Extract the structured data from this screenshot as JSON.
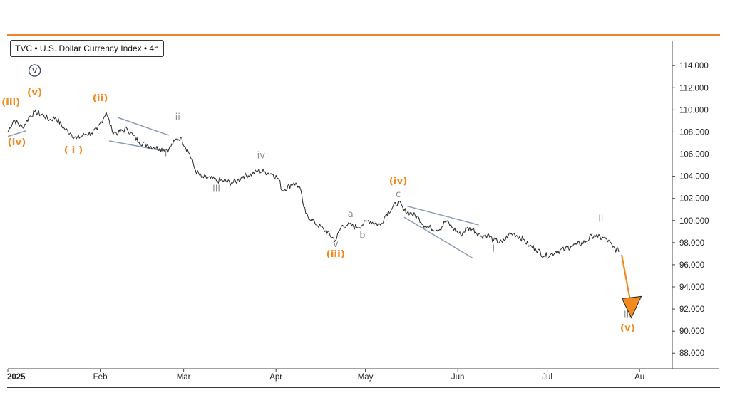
{
  "symbol_label": "TVC • U.S. Dollar Currency Index • 4h",
  "colors": {
    "price": "#2a2a2a",
    "orange": "#f28a1e",
    "gray": "#8c8c8c",
    "navy": "#3a4670",
    "channel": "#8a9bb8",
    "top_border": "#e8862a"
  },
  "chart_data": {
    "type": "line",
    "title": "TVC • U.S. Dollar Currency Index • 4h",
    "ylim": [
      86.6,
      116.2
    ],
    "y_ticks": [
      "88.000",
      "90.000",
      "92.000",
      "94.000",
      "96.000",
      "98.000",
      "100.000",
      "102.000",
      "104.000",
      "106.000",
      "108.000",
      "110.000",
      "112.000",
      "114.000"
    ],
    "x_ticks": [
      "2025",
      "Feb",
      "Mar",
      "Apr",
      "May",
      "Jun",
      "Jul",
      "Au"
    ],
    "series": [
      {
        "x": [
          "2025-01-01",
          "2025-01-03",
          "2025-01-06",
          "2025-01-08",
          "2025-01-10",
          "2025-01-13",
          "2025-01-15",
          "2025-01-17",
          "2025-01-20",
          "2025-01-22",
          "2025-01-24",
          "2025-01-27",
          "2025-01-29",
          "2025-01-31",
          "2025-02-03",
          "2025-02-05",
          "2025-02-07",
          "2025-02-10",
          "2025-02-12",
          "2025-02-14",
          "2025-02-17",
          "2025-02-19",
          "2025-02-21",
          "2025-02-24",
          "2025-02-26",
          "2025-02-28",
          "2025-03-03",
          "2025-03-05",
          "2025-03-07",
          "2025-03-10",
          "2025-03-12",
          "2025-03-14",
          "2025-03-17",
          "2025-03-19",
          "2025-03-21",
          "2025-03-24",
          "2025-03-26",
          "2025-03-28",
          "2025-03-31",
          "2025-04-02",
          "2025-04-03",
          "2025-04-07",
          "2025-04-09",
          "2025-04-10",
          "2025-04-11",
          "2025-04-14",
          "2025-04-17",
          "2025-04-21",
          "2025-04-23",
          "2025-04-25",
          "2025-04-28",
          "2025-04-30",
          "2025-05-02",
          "2025-05-06",
          "2025-05-08",
          "2025-05-12",
          "2025-05-14",
          "2025-05-16",
          "2025-05-19",
          "2025-05-21",
          "2025-05-23",
          "2025-05-26",
          "2025-05-28",
          "2025-05-30",
          "2025-06-02",
          "2025-06-04",
          "2025-06-06",
          "2025-06-09",
          "2025-06-11",
          "2025-06-13",
          "2025-06-16",
          "2025-06-18",
          "2025-06-20",
          "2025-06-23",
          "2025-06-25",
          "2025-06-27",
          "2025-06-30",
          "2025-07-02",
          "2025-07-04",
          "2025-07-07",
          "2025-07-09",
          "2025-07-11",
          "2025-07-14",
          "2025-07-16",
          "2025-07-17",
          "2025-07-18",
          "2025-07-21",
          "2025-07-23",
          "2025-07-25"
        ],
        "values": [
          108.0,
          109.1,
          108.4,
          109.3,
          109.8,
          109.5,
          109.1,
          109.3,
          108.3,
          107.9,
          107.4,
          107.8,
          107.9,
          108.2,
          109.8,
          108.1,
          107.9,
          108.3,
          107.7,
          107.1,
          106.8,
          106.6,
          106.5,
          106.4,
          107.2,
          107.5,
          106.0,
          104.5,
          103.9,
          103.8,
          103.6,
          103.6,
          103.4,
          103.6,
          104.0,
          104.2,
          104.5,
          104.4,
          104.2,
          103.7,
          102.7,
          103.4,
          103.0,
          101.6,
          100.6,
          99.8,
          99.2,
          98.2,
          99.5,
          99.6,
          99.4,
          99.6,
          100.0,
          99.6,
          100.6,
          101.7,
          100.9,
          100.7,
          100.2,
          99.5,
          99.3,
          99.2,
          100.0,
          99.4,
          98.7,
          99.3,
          99.2,
          98.6,
          98.7,
          98.2,
          98.0,
          98.7,
          98.8,
          98.3,
          97.7,
          97.5,
          96.8,
          96.9,
          97.2,
          97.4,
          97.7,
          97.8,
          98.1,
          98.6,
          98.7,
          98.5,
          98.3,
          97.6,
          97.2
        ]
      }
    ],
    "wave_labels": [
      {
        "text": "(iii)",
        "color": "orange",
        "date": "2025-01-02",
        "value": 110.4
      },
      {
        "text": "(iv)",
        "color": "orange",
        "date": "2025-01-04",
        "value": 106.8
      },
      {
        "text": "(v)",
        "color": "orange",
        "date": "2025-01-10",
        "value": 111.3
      },
      {
        "text": "v",
        "color": "navy",
        "date": "2025-01-10",
        "value": 113.3,
        "circled": true
      },
      {
        "text": "( i )",
        "color": "orange",
        "date": "2025-01-23",
        "value": 106.1
      },
      {
        "text": "(ii)",
        "color": "orange",
        "date": "2025-02-01",
        "value": 110.8
      },
      {
        "text": "i",
        "color": "gray",
        "date": "2025-02-23",
        "value": 105.8
      },
      {
        "text": "ii",
        "color": "gray",
        "date": "2025-02-27",
        "value": 109.1
      },
      {
        "text": "iii",
        "color": "gray",
        "date": "2025-03-12",
        "value": 102.6
      },
      {
        "text": "iv",
        "color": "gray",
        "date": "2025-03-27",
        "value": 105.6
      },
      {
        "text": "a",
        "color": "gray",
        "date": "2025-04-26",
        "value": 100.3
      },
      {
        "text": "b",
        "color": "gray",
        "date": "2025-04-30",
        "value": 98.4
      },
      {
        "text": "v",
        "color": "gray",
        "date": "2025-04-21",
        "value": 97.6
      },
      {
        "text": "(iii)",
        "color": "orange",
        "date": "2025-04-21",
        "value": 96.7
      },
      {
        "text": "(iv)",
        "color": "orange",
        "date": "2025-05-12",
        "value": 103.3
      },
      {
        "text": "c",
        "color": "gray",
        "date": "2025-05-12",
        "value": 102.1
      },
      {
        "text": "i",
        "color": "gray",
        "date": "2025-06-13",
        "value": 97.2
      },
      {
        "text": "ii",
        "color": "gray",
        "date": "2025-07-19",
        "value": 99.9
      },
      {
        "text": "iii",
        "color": "gray",
        "date": "2025-07-28",
        "value": 91.2
      },
      {
        "text": "(v)",
        "color": "orange",
        "date": "2025-07-28",
        "value": 90.0
      }
    ],
    "trendlines": [
      {
        "from": [
          "2025-01-01",
          107.6
        ],
        "to": [
          "2025-01-07",
          108.1
        ]
      },
      {
        "from": [
          "2025-02-07",
          109.3
        ],
        "to": [
          "2025-02-24",
          107.7
        ]
      },
      {
        "from": [
          "2025-02-04",
          107.2
        ],
        "to": [
          "2025-02-22",
          106.3
        ]
      },
      {
        "from": [
          "2025-05-15",
          101.3
        ],
        "to": [
          "2025-06-08",
          99.6
        ]
      },
      {
        "from": [
          "2025-05-14",
          100.3
        ],
        "to": [
          "2025-06-06",
          96.6
        ]
      }
    ],
    "projection_arrow": {
      "from": [
        "2025-07-26",
        96.9
      ],
      "to": [
        "2025-07-29",
        91.4
      ]
    }
  }
}
